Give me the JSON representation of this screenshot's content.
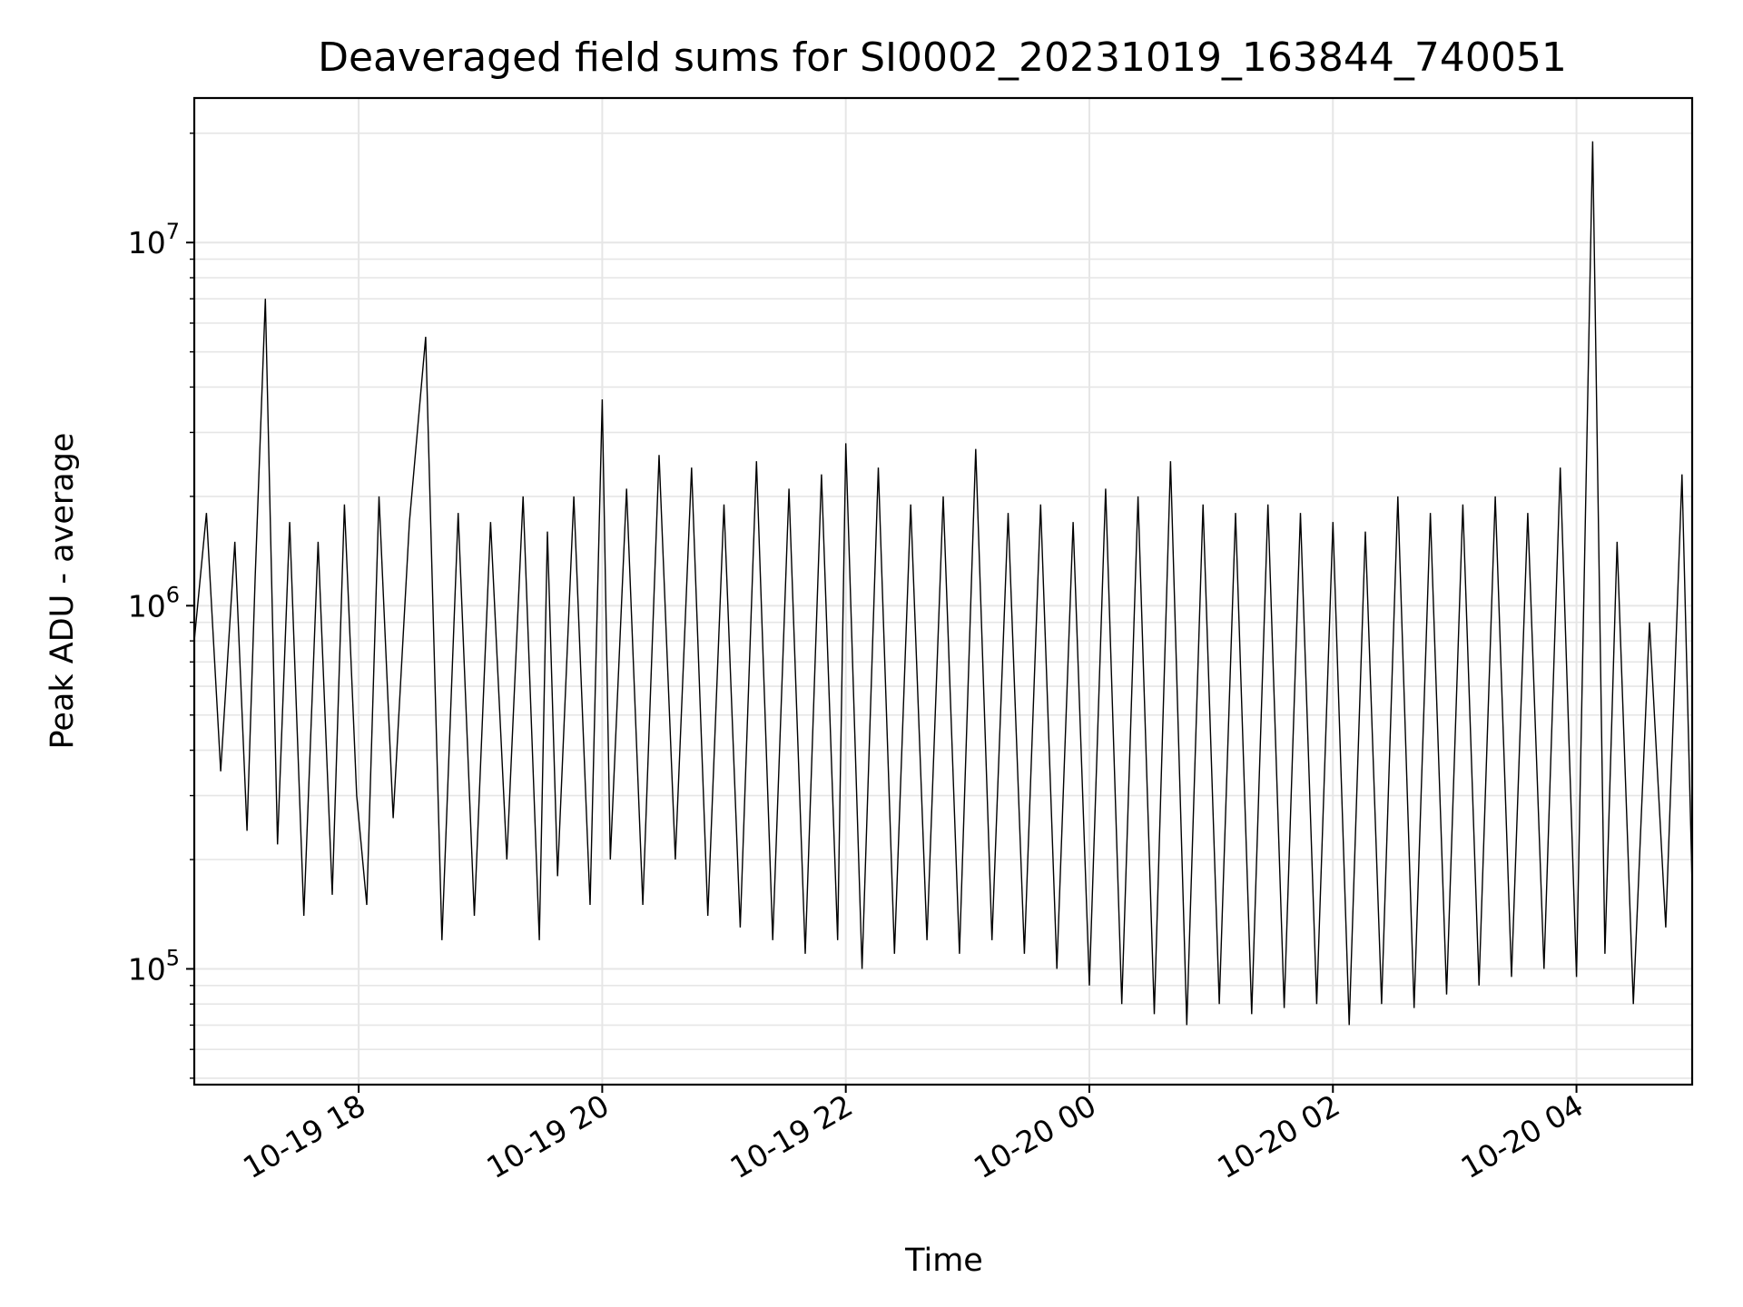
{
  "chart_data": {
    "type": "line",
    "title": "Deaveraged field sums for SI0002_20231019_163844_740051",
    "xlabel": "Time",
    "ylabel": "Peak ADU - average",
    "yscale": "log",
    "xlim": [
      "2023-10-19T16:39",
      "2023-10-20T04:57"
    ],
    "ylim": [
      48000,
      25000000
    ],
    "x_ticks": [
      {
        "value": "2023-10-19T18:00",
        "label": "10-19 18"
      },
      {
        "value": "2023-10-19T20:00",
        "label": "10-19 20"
      },
      {
        "value": "2023-10-19T22:00",
        "label": "10-19 22"
      },
      {
        "value": "2023-10-20T00:00",
        "label": "10-20 00"
      },
      {
        "value": "2023-10-20T02:00",
        "label": "10-20 02"
      },
      {
        "value": "2023-10-20T04:00",
        "label": "10-20 04"
      }
    ],
    "y_ticks": [
      {
        "value": 100000,
        "base": "10",
        "exp": "5"
      },
      {
        "value": 1000000,
        "base": "10",
        "exp": "6"
      },
      {
        "value": 10000000,
        "base": "10",
        "exp": "7"
      }
    ],
    "grid": true,
    "line_color": "#000000",
    "grid_color": "#e6e6e6",
    "series": [
      {
        "x": [
          "2023-10-19T16:39",
          "2023-10-19T16:45",
          "2023-10-19T16:52",
          "2023-10-19T16:59",
          "2023-10-19T17:05",
          "2023-10-19T17:09",
          "2023-10-19T17:14",
          "2023-10-19T17:20",
          "2023-10-19T17:26",
          "2023-10-19T17:33",
          "2023-10-19T17:40",
          "2023-10-19T17:47",
          "2023-10-19T17:53",
          "2023-10-19T17:59",
          "2023-10-19T18:04",
          "2023-10-19T18:10",
          "2023-10-19T18:17",
          "2023-10-19T18:25",
          "2023-10-19T18:33",
          "2023-10-19T18:41",
          "2023-10-19T18:49",
          "2023-10-19T18:57",
          "2023-10-19T19:05",
          "2023-10-19T19:13",
          "2023-10-19T19:21",
          "2023-10-19T19:29",
          "2023-10-19T19:33",
          "2023-10-19T19:38",
          "2023-10-19T19:46",
          "2023-10-19T19:54",
          "2023-10-19T20:00",
          "2023-10-19T20:04",
          "2023-10-19T20:12",
          "2023-10-19T20:20",
          "2023-10-19T20:28",
          "2023-10-19T20:36",
          "2023-10-19T20:44",
          "2023-10-19T20:52",
          "2023-10-19T21:00",
          "2023-10-19T21:08",
          "2023-10-19T21:16",
          "2023-10-19T21:24",
          "2023-10-19T21:32",
          "2023-10-19T21:40",
          "2023-10-19T21:48",
          "2023-10-19T21:56",
          "2023-10-19T22:00",
          "2023-10-19T22:08",
          "2023-10-19T22:16",
          "2023-10-19T22:24",
          "2023-10-19T22:32",
          "2023-10-19T22:40",
          "2023-10-19T22:48",
          "2023-10-19T22:56",
          "2023-10-19T23:04",
          "2023-10-19T23:12",
          "2023-10-19T23:20",
          "2023-10-19T23:28",
          "2023-10-19T23:36",
          "2023-10-19T23:44",
          "2023-10-19T23:52",
          "2023-10-20T00:00",
          "2023-10-20T00:08",
          "2023-10-20T00:16",
          "2023-10-20T00:24",
          "2023-10-20T00:32",
          "2023-10-20T00:40",
          "2023-10-20T00:48",
          "2023-10-20T00:56",
          "2023-10-20T01:04",
          "2023-10-20T01:12",
          "2023-10-20T01:20",
          "2023-10-20T01:28",
          "2023-10-20T01:36",
          "2023-10-20T01:44",
          "2023-10-20T01:52",
          "2023-10-20T02:00",
          "2023-10-20T02:08",
          "2023-10-20T02:16",
          "2023-10-20T02:24",
          "2023-10-20T02:32",
          "2023-10-20T02:40",
          "2023-10-20T02:48",
          "2023-10-20T02:56",
          "2023-10-20T03:04",
          "2023-10-20T03:12",
          "2023-10-20T03:20",
          "2023-10-20T03:28",
          "2023-10-20T03:36",
          "2023-10-20T03:44",
          "2023-10-20T03:52",
          "2023-10-20T04:00",
          "2023-10-20T04:08",
          "2023-10-20T04:14",
          "2023-10-20T04:20",
          "2023-10-20T04:28",
          "2023-10-20T04:36",
          "2023-10-20T04:44",
          "2023-10-20T04:52",
          "2023-10-20T04:57"
        ],
        "y": [
          800000,
          1800000,
          350000,
          1500000,
          240000,
          1200000,
          7000000,
          220000,
          1700000,
          140000,
          1500000,
          160000,
          1900000,
          300000,
          150000,
          2000000,
          260000,
          1700000,
          5500000,
          120000,
          1800000,
          140000,
          1700000,
          200000,
          2000000,
          120000,
          1600000,
          180000,
          2000000,
          150000,
          3700000,
          200000,
          2100000,
          150000,
          2600000,
          200000,
          2400000,
          140000,
          1900000,
          130000,
          2500000,
          120000,
          2100000,
          110000,
          2300000,
          120000,
          2800000,
          100000,
          2400000,
          110000,
          1900000,
          120000,
          2000000,
          110000,
          2700000,
          120000,
          1800000,
          110000,
          1900000,
          100000,
          1700000,
          90000,
          2100000,
          80000,
          2000000,
          75000,
          2500000,
          70000,
          1900000,
          80000,
          1800000,
          75000,
          1900000,
          78000,
          1800000,
          80000,
          1700000,
          70000,
          1600000,
          80000,
          2000000,
          78000,
          1800000,
          85000,
          1900000,
          90000,
          2000000,
          95000,
          1800000,
          100000,
          2400000,
          95000,
          19000000,
          110000,
          1500000,
          80000,
          900000,
          130000,
          2300000,
          170000
        ]
      }
    ]
  }
}
